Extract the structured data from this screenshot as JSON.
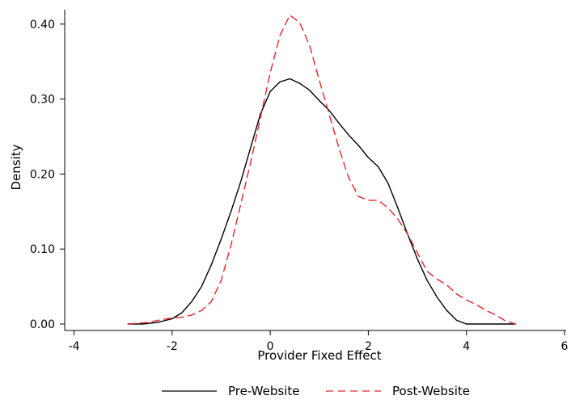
{
  "chart_data": {
    "type": "line",
    "title": "",
    "xlabel": "Provider Fixed Effect",
    "ylabel": "Density",
    "xlim": [
      -4,
      6
    ],
    "ylim": [
      0,
      0.42
    ],
    "x_ticks": [
      -4,
      -2,
      0,
      2,
      4,
      6
    ],
    "x_tick_labels": [
      "-4",
      "-2",
      "0",
      "2",
      "4",
      "6"
    ],
    "y_ticks": [
      0.0,
      0.1,
      0.2,
      0.3,
      0.4
    ],
    "y_tick_labels": [
      "0.00",
      "0.10",
      "0.20",
      "0.30",
      "0.40"
    ],
    "grid": false,
    "legend_position": "bottom",
    "series": [
      {
        "name": "Pre-Website",
        "color": "#000000",
        "dash": "solid",
        "x": [
          -2.9,
          -2.6,
          -2.3,
          -2.0,
          -1.8,
          -1.6,
          -1.4,
          -1.2,
          -1.0,
          -0.8,
          -0.6,
          -0.4,
          -0.2,
          0.0,
          0.2,
          0.4,
          0.6,
          0.8,
          1.0,
          1.2,
          1.4,
          1.6,
          1.8,
          2.0,
          2.2,
          2.4,
          2.6,
          2.8,
          3.0,
          3.2,
          3.4,
          3.6,
          3.8,
          4.0,
          4.3,
          5.0
        ],
        "y": [
          0.0,
          0.0,
          0.002,
          0.007,
          0.015,
          0.03,
          0.05,
          0.079,
          0.113,
          0.15,
          0.19,
          0.235,
          0.28,
          0.31,
          0.323,
          0.327,
          0.321,
          0.312,
          0.298,
          0.285,
          0.268,
          0.252,
          0.238,
          0.222,
          0.21,
          0.188,
          0.155,
          0.12,
          0.087,
          0.058,
          0.036,
          0.018,
          0.005,
          0.0,
          0.0,
          0.0
        ]
      },
      {
        "name": "Post-Website",
        "color": "#e8252a",
        "dash": "dashed",
        "x": [
          -2.9,
          -2.5,
          -2.2,
          -2.0,
          -1.8,
          -1.6,
          -1.4,
          -1.2,
          -1.0,
          -0.8,
          -0.6,
          -0.4,
          -0.2,
          0.0,
          0.2,
          0.4,
          0.6,
          0.8,
          1.0,
          1.2,
          1.4,
          1.6,
          1.8,
          2.0,
          2.2,
          2.4,
          2.6,
          2.8,
          3.0,
          3.2,
          3.4,
          3.6,
          3.8,
          4.0,
          4.2,
          4.4,
          4.6,
          4.8,
          5.0
        ],
        "y": [
          0.0,
          0.002,
          0.006,
          0.008,
          0.009,
          0.012,
          0.018,
          0.03,
          0.058,
          0.105,
          0.16,
          0.215,
          0.275,
          0.335,
          0.385,
          0.412,
          0.402,
          0.372,
          0.325,
          0.28,
          0.235,
          0.195,
          0.17,
          0.165,
          0.165,
          0.155,
          0.14,
          0.12,
          0.095,
          0.07,
          0.06,
          0.052,
          0.04,
          0.032,
          0.026,
          0.018,
          0.012,
          0.004,
          0.0
        ]
      }
    ]
  }
}
